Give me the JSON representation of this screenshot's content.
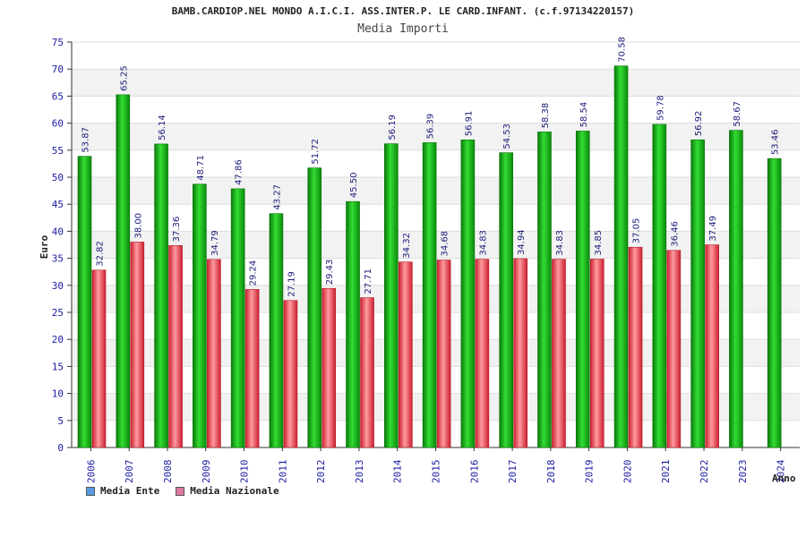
{
  "chart_data": {
    "type": "bar",
    "title": "BAMB.CARDIOP.NEL MONDO A.I.C.I. ASS.INTER.P. LE CARD.INFANT. (c.f.97134220157)",
    "subtitle": "Media Importi",
    "xlabel": "Anno",
    "ylabel": "Euro",
    "ylim": [
      0,
      75
    ],
    "yticks": [
      0,
      5,
      10,
      15,
      20,
      25,
      30,
      35,
      40,
      45,
      50,
      55,
      60,
      65,
      70,
      75
    ],
    "categories": [
      "2006",
      "2007",
      "2008",
      "2009",
      "2010",
      "2011",
      "2012",
      "2013",
      "2014",
      "2015",
      "2016",
      "2017",
      "2018",
      "2019",
      "2020",
      "2021",
      "2022",
      "2023",
      "2024"
    ],
    "series": [
      {
        "name": "Media Ente",
        "color": "#00a000",
        "legend_color": "#5b9be0",
        "values": [
          53.87,
          65.25,
          56.14,
          48.71,
          47.86,
          43.27,
          51.72,
          45.5,
          56.19,
          56.39,
          56.91,
          54.53,
          58.38,
          58.54,
          70.58,
          59.78,
          56.92,
          58.67,
          53.46
        ],
        "labels": [
          "53.87",
          "65.25",
          "56.14",
          "48.71",
          "47.86",
          "43.27",
          "51.72",
          "45.50",
          "56.19",
          "56.39",
          "56.91",
          "54.53",
          "58.38",
          "58.54",
          "70.58",
          "59.78",
          "56.92",
          "58.67",
          "53.46"
        ]
      },
      {
        "name": "Media Nazionale",
        "color": "#e0303a",
        "legend_color": "#e07aa0",
        "values": [
          32.82,
          38.0,
          37.36,
          34.79,
          29.24,
          27.19,
          29.43,
          27.71,
          34.32,
          34.68,
          34.83,
          34.94,
          34.83,
          34.85,
          37.05,
          36.46,
          37.49,
          null,
          null
        ],
        "labels": [
          "32.82",
          "38.00",
          "37.36",
          "34.79",
          "29.24",
          "27.19",
          "29.43",
          "27.71",
          "34.32",
          "34.68",
          "34.83",
          "34.94",
          "34.83",
          "34.85",
          "37.05",
          "36.46",
          "37.49",
          null,
          null
        ]
      }
    ],
    "grid": true,
    "legend": "bottom-left"
  }
}
